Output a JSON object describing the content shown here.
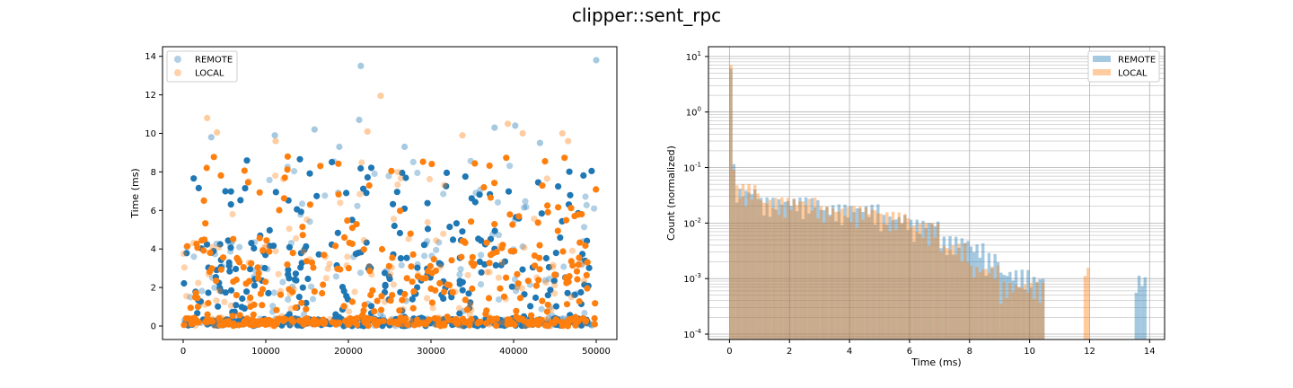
{
  "figure": {
    "suptitle": "clipper::sent_rpc"
  },
  "colors": {
    "remote": "#1f77b4",
    "local": "#ff7f0e"
  },
  "chart_data": [
    {
      "type": "scatter",
      "xlabel": "",
      "ylabel": "Time (ms)",
      "xlim": [
        -2500,
        52500
      ],
      "ylim": [
        -0.7,
        14.5
      ],
      "xticks": [
        0,
        10000,
        20000,
        30000,
        40000,
        50000
      ],
      "yticks": [
        0,
        2,
        4,
        6,
        8,
        10,
        12,
        14
      ],
      "grid": false,
      "legend": {
        "position": "upper-left",
        "entries": [
          "REMOTE",
          "LOCAL"
        ]
      },
      "series": [
        {
          "name": "REMOTE",
          "color": "#1f77b4",
          "notable_points": [
            [
              21500,
              13.5
            ],
            [
              50000,
              13.8
            ],
            [
              21300,
              10.7
            ],
            [
              15900,
              10.2
            ],
            [
              11100,
              9.9
            ],
            [
              3400,
              9.8
            ],
            [
              40200,
              10.4
            ],
            [
              37700,
              10.3
            ],
            [
              43200,
              9.5
            ],
            [
              26800,
              9.3
            ],
            [
              18900,
              9.3
            ]
          ],
          "count": 650,
          "range_y": [
            0,
            8.7
          ]
        },
        {
          "name": "LOCAL",
          "color": "#ff7f0e",
          "notable_points": [
            [
              23900,
              11.95
            ],
            [
              2900,
              10.8
            ],
            [
              4100,
              10.05
            ],
            [
              39300,
              10.5
            ],
            [
              41100,
              10.0
            ],
            [
              45900,
              10.0
            ],
            [
              22300,
              10.1
            ],
            [
              46600,
              9.6
            ],
            [
              33800,
              9.9
            ],
            [
              11200,
              9.6
            ]
          ],
          "count": 650,
          "range_y": [
            0,
            8.8
          ]
        }
      ]
    },
    {
      "type": "histogram",
      "xlabel": "Time (ms)",
      "ylabel": "Count (normalized)",
      "yscale": "log",
      "xlim": [
        -0.7,
        14.5
      ],
      "ylim": [
        8e-05,
        15
      ],
      "xticks": [
        0,
        2,
        4,
        6,
        8,
        10,
        12,
        14
      ],
      "yticks": [
        "10^-4",
        "10^-3",
        "10^-2",
        "10^-1",
        "10^0",
        "10^1"
      ],
      "grid": true,
      "legend": {
        "position": "upper-right",
        "entries": [
          "REMOTE",
          "LOCAL"
        ]
      },
      "bin_width": 0.1,
      "series": [
        {
          "name": "REMOTE",
          "color": "#1f77b4",
          "alpha": 0.4,
          "first_bin_value": 6.0,
          "values_by_range": [
            [
              0.0,
              0.2,
              0.08
            ],
            [
              0.2,
              1.0,
              0.03
            ],
            [
              1.0,
              3.0,
              0.02
            ],
            [
              3.0,
              5.0,
              0.015
            ],
            [
              5.0,
              6.0,
              0.01
            ],
            [
              6.0,
              7.0,
              0.008
            ],
            [
              7.0,
              8.0,
              0.004
            ],
            [
              8.0,
              8.5,
              0.003
            ],
            [
              8.5,
              9.0,
              0.002
            ],
            [
              9.0,
              10.0,
              0.001
            ],
            [
              10.0,
              10.5,
              0.0008
            ],
            [
              13.5,
              13.9,
              0.0008
            ]
          ]
        },
        {
          "name": "LOCAL",
          "color": "#ff7f0e",
          "alpha": 0.4,
          "first_bin_value": 7.0,
          "values_by_range": [
            [
              0.0,
              0.2,
              0.09
            ],
            [
              0.2,
              1.0,
              0.035
            ],
            [
              1.0,
              3.0,
              0.02
            ],
            [
              3.0,
              5.0,
              0.014
            ],
            [
              5.0,
              6.0,
              0.011
            ],
            [
              6.0,
              7.0,
              0.007
            ],
            [
              7.0,
              8.0,
              0.003
            ],
            [
              8.0,
              9.0,
              0.0012
            ],
            [
              9.0,
              10.5,
              0.0006
            ],
            [
              11.8,
              12.0,
              0.0012
            ]
          ]
        }
      ]
    }
  ]
}
